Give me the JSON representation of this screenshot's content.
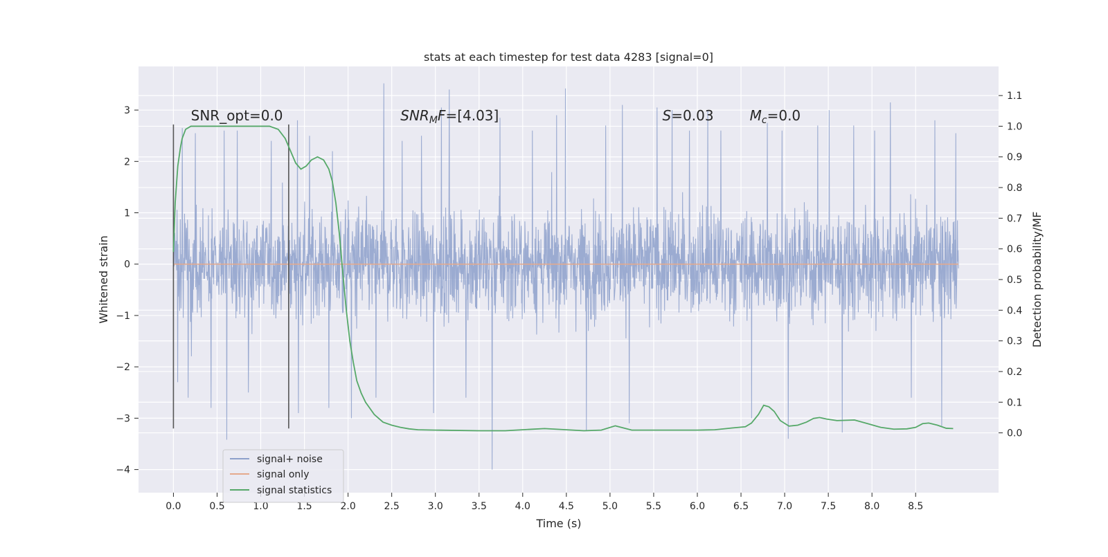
{
  "chart_data": {
    "type": "line",
    "title": "stats at each timestep for test data 4283 [signal=0]",
    "xlabel": "Time (s)",
    "ylabel": "Whitened strain",
    "y2label": "Detection probability/MF",
    "xlim": [
      -0.4,
      9.45
    ],
    "ylim": [
      -4.45,
      3.85
    ],
    "y2lim": [
      -0.195,
      1.195
    ],
    "x_ticks": [
      0.0,
      0.5,
      1.0,
      1.5,
      2.0,
      2.5,
      3.0,
      3.5,
      4.0,
      4.5,
      5.0,
      5.5,
      6.0,
      6.5,
      7.0,
      7.5,
      8.0,
      8.5
    ],
    "x_tick_labels": [
      "0.0",
      "0.5",
      "1.0",
      "1.5",
      "2.0",
      "2.5",
      "3.0",
      "3.5",
      "4.0",
      "4.5",
      "5.0",
      "5.5",
      "6.0",
      "6.5",
      "7.0",
      "7.5",
      "8.0",
      "8.5"
    ],
    "y_ticks": [
      3,
      2,
      1,
      0,
      -1,
      -2,
      -3,
      -4
    ],
    "y_tick_labels": [
      "3",
      "2",
      "1",
      "0",
      "−1",
      "−2",
      "−3",
      "−4"
    ],
    "y2_ticks": [
      1.1,
      1.0,
      0.9,
      0.8,
      0.7,
      0.6,
      0.5,
      0.4,
      0.3,
      0.2,
      0.1,
      0.0
    ],
    "y2_tick_labels": [
      "1.1",
      "1.0",
      "0.9",
      "0.8",
      "0.7",
      "0.6",
      "0.5",
      "0.4",
      "0.3",
      "0.2",
      "0.1",
      "0.0"
    ],
    "grid": true,
    "legend_position": "lower-left",
    "series": [
      {
        "name": "signal+ noise",
        "color": "#8da0cb",
        "x_range": [
          0.0,
          8.99
        ],
        "description_values": {
          "core_band": [
            -1.2,
            1.2
          ],
          "peak_max": 3.52,
          "peak_min": -4.0
        },
        "spike_points": [
          [
            0.05,
            -2.3
          ],
          [
            0.1,
            2.65
          ],
          [
            0.17,
            -2.6
          ],
          [
            0.25,
            2.55
          ],
          [
            0.43,
            -2.8
          ],
          [
            0.58,
            2.6
          ],
          [
            0.61,
            -3.42
          ],
          [
            0.73,
            2.6
          ],
          [
            0.86,
            -2.5
          ],
          [
            1.12,
            2.4
          ],
          [
            1.32,
            -2.1
          ],
          [
            1.42,
            2.8
          ],
          [
            1.43,
            -2.9
          ],
          [
            1.56,
            2.5
          ],
          [
            1.78,
            -2.8
          ],
          [
            1.82,
            2.2
          ],
          [
            2.04,
            -3.0
          ],
          [
            2.32,
            -2.6
          ],
          [
            2.41,
            3.52
          ],
          [
            2.62,
            2.4
          ],
          [
            2.84,
            2.5
          ],
          [
            2.98,
            -2.9
          ],
          [
            3.07,
            3.05
          ],
          [
            3.16,
            3.4
          ],
          [
            3.35,
            -2.6
          ],
          [
            3.65,
            -4.0
          ],
          [
            3.74,
            2.85
          ],
          [
            4.11,
            2.6
          ],
          [
            4.39,
            2.9
          ],
          [
            4.49,
            3.42
          ],
          [
            4.73,
            -3.25
          ],
          [
            4.95,
            2.7
          ],
          [
            5.14,
            3.1
          ],
          [
            5.22,
            -3.1
          ],
          [
            5.54,
            3.05
          ],
          [
            5.71,
            3.0
          ],
          [
            5.91,
            2.6
          ],
          [
            6.12,
            3.0
          ],
          [
            6.27,
            2.6
          ],
          [
            6.62,
            -3.0
          ],
          [
            6.8,
            2.75
          ],
          [
            6.97,
            2.6
          ],
          [
            7.04,
            -3.4
          ],
          [
            7.38,
            2.7
          ],
          [
            7.51,
            3.0
          ],
          [
            7.66,
            -3.28
          ],
          [
            7.79,
            2.7
          ],
          [
            8.03,
            2.6
          ],
          [
            8.21,
            3.15
          ],
          [
            8.45,
            -2.6
          ],
          [
            8.72,
            2.8
          ],
          [
            8.8,
            -3.15
          ],
          [
            8.96,
            2.55
          ]
        ]
      },
      {
        "name": "signal only",
        "color": "#e5a98c",
        "x": [
          0.0,
          8.99
        ],
        "y": [
          0.0,
          0.0
        ]
      },
      {
        "name": "signal statistics",
        "color": "#55a868",
        "axis": "right",
        "x": [
          0.0,
          0.02,
          0.05,
          0.08,
          0.1,
          0.14,
          0.2,
          0.3,
          0.5,
          0.8,
          1.0,
          1.1,
          1.2,
          1.28,
          1.34,
          1.4,
          1.46,
          1.52,
          1.58,
          1.65,
          1.72,
          1.78,
          1.82,
          1.86,
          1.9,
          1.94,
          1.98,
          2.02,
          2.06,
          2.1,
          2.15,
          2.2,
          2.3,
          2.4,
          2.5,
          2.6,
          2.7,
          2.8,
          3.0,
          3.5,
          3.8,
          4.25,
          4.7,
          4.9,
          5.06,
          5.25,
          5.5,
          6.0,
          6.2,
          6.4,
          6.55,
          6.62,
          6.7,
          6.76,
          6.82,
          6.88,
          6.95,
          7.05,
          7.15,
          7.25,
          7.33,
          7.4,
          7.48,
          7.6,
          7.8,
          7.95,
          8.1,
          8.25,
          8.4,
          8.5,
          8.58,
          8.65,
          8.75,
          8.85,
          8.93
        ],
        "y": [
          0.59,
          0.75,
          0.87,
          0.93,
          0.96,
          0.99,
          1.0,
          1.0,
          1.0,
          1.0,
          1.0,
          1.0,
          0.99,
          0.96,
          0.92,
          0.88,
          0.86,
          0.87,
          0.89,
          0.9,
          0.89,
          0.86,
          0.82,
          0.75,
          0.65,
          0.52,
          0.4,
          0.3,
          0.23,
          0.17,
          0.13,
          0.1,
          0.06,
          0.035,
          0.025,
          0.018,
          0.013,
          0.01,
          0.009,
          0.007,
          0.007,
          0.014,
          0.007,
          0.009,
          0.023,
          0.009,
          0.009,
          0.009,
          0.01,
          0.016,
          0.02,
          0.032,
          0.06,
          0.09,
          0.085,
          0.07,
          0.04,
          0.022,
          0.025,
          0.035,
          0.047,
          0.05,
          0.045,
          0.04,
          0.042,
          0.03,
          0.018,
          0.012,
          0.013,
          0.018,
          0.03,
          0.032,
          0.025,
          0.015,
          0.014
        ]
      }
    ],
    "vertical_lines": [
      {
        "x": 0.0,
        "y_from": -3.2,
        "y_to": 2.72,
        "color": "#555555"
      },
      {
        "x": 1.32,
        "y_from": -3.2,
        "y_to": 2.72,
        "color": "#555555"
      }
    ],
    "annotations": [
      {
        "x": 0.2,
        "y": 2.8,
        "text": "SNR_opt=0.0",
        "italic": false
      },
      {
        "x": 2.6,
        "y": 2.8,
        "parts": [
          [
            "SNR",
            "italic"
          ],
          [
            "M",
            "italic-sub"
          ],
          [
            "F",
            "italic"
          ],
          [
            "=[4.03]",
            "normal"
          ]
        ]
      },
      {
        "x": 5.6,
        "y": 2.8,
        "parts": [
          [
            "S",
            "italic"
          ],
          [
            "=0.03",
            "normal"
          ]
        ]
      },
      {
        "x": 6.6,
        "y": 2.8,
        "parts": [
          [
            "M",
            "italic"
          ],
          [
            "c",
            "italic-sub"
          ],
          [
            "=0.0",
            "normal"
          ]
        ]
      }
    ],
    "annotation_texts": [
      "SNR_opt=0.0",
      "SNRMF=[4.03]",
      "S=0.03",
      "Mc=0.0"
    ]
  }
}
